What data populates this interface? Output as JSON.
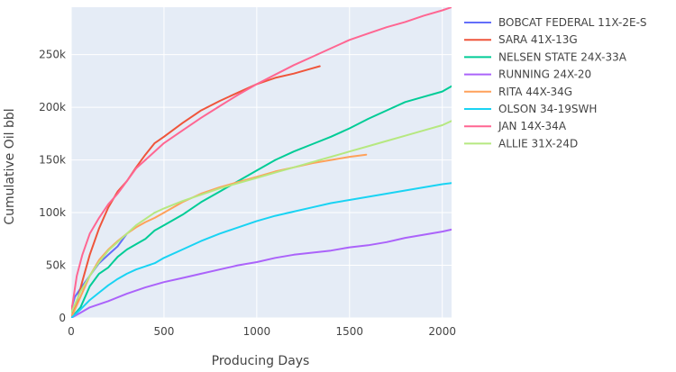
{
  "chart_data": {
    "type": "line",
    "title": "",
    "xlabel": "Producing Days",
    "ylabel": "Cumulative Oil bbl",
    "xlim": [
      0,
      2050
    ],
    "ylim": [
      0,
      295000
    ],
    "x_ticks": [
      0,
      500,
      1000,
      1500,
      2000
    ],
    "x_tick_labels": [
      "0",
      "500",
      "1000",
      "1500",
      "2000"
    ],
    "y_ticks": [
      0,
      50000,
      100000,
      150000,
      200000,
      250000
    ],
    "y_tick_labels": [
      "0",
      "50k",
      "100k",
      "150k",
      "200k",
      "250k"
    ],
    "grid": true,
    "plot_background": "#e5ecf6",
    "legend_position": "right",
    "series": [
      {
        "name": "BOBCAT FEDERAL 11X-2E-S",
        "color": "#636efa",
        "x": [
          0,
          20,
          50,
          100,
          150,
          200,
          250,
          300
        ],
        "y": [
          8000,
          20000,
          28000,
          40000,
          52000,
          60000,
          68000,
          80000
        ]
      },
      {
        "name": "SARA 41X-13G",
        "color": "#ef553b",
        "x": [
          0,
          30,
          60,
          100,
          150,
          200,
          250,
          300,
          350,
          400,
          450,
          500,
          600,
          700,
          800,
          900,
          1000,
          1100,
          1200,
          1300,
          1340
        ],
        "y": [
          0,
          15000,
          35000,
          60000,
          85000,
          105000,
          120000,
          130000,
          143000,
          155000,
          166000,
          172000,
          185000,
          197000,
          206000,
          214000,
          222000,
          228000,
          232000,
          237000,
          239000
        ]
      },
      {
        "name": "NELSEN STATE 24X-33A",
        "color": "#00cc96",
        "x": [
          0,
          50,
          100,
          150,
          200,
          250,
          300,
          350,
          400,
          450,
          500,
          550,
          600,
          700,
          800,
          900,
          1000,
          1100,
          1200,
          1300,
          1400,
          1500,
          1600,
          1700,
          1800,
          1900,
          2000,
          2050
        ],
        "y": [
          0,
          10000,
          30000,
          42000,
          48000,
          58000,
          65000,
          70000,
          75000,
          83000,
          88000,
          93000,
          98000,
          110000,
          120000,
          130000,
          140000,
          150000,
          158000,
          165000,
          172000,
          180000,
          189000,
          197000,
          205000,
          210000,
          215000,
          220000
        ]
      },
      {
        "name": "RUNNING 24X-20",
        "color": "#ab63fa",
        "x": [
          0,
          50,
          100,
          200,
          300,
          400,
          500,
          600,
          700,
          800,
          900,
          1000,
          1100,
          1200,
          1300,
          1400,
          1500,
          1600,
          1700,
          1800,
          1900,
          2000,
          2050
        ],
        "y": [
          0,
          5000,
          10000,
          16000,
          23000,
          29000,
          34000,
          38000,
          42000,
          46000,
          50000,
          53000,
          57000,
          60000,
          62000,
          64000,
          67000,
          69000,
          72000,
          76000,
          79000,
          82000,
          84000
        ]
      },
      {
        "name": "RITA 44X-34G",
        "color": "#ffa15a",
        "x": [
          0,
          50,
          100,
          150,
          200,
          250,
          300,
          350,
          400,
          450,
          500,
          600,
          700,
          800,
          900,
          1000,
          1100,
          1200,
          1300,
          1400,
          1500,
          1590
        ],
        "y": [
          0,
          20000,
          40000,
          55000,
          65000,
          73000,
          80000,
          86000,
          91000,
          95000,
          100000,
          110000,
          118000,
          124000,
          129000,
          134000,
          139000,
          143000,
          147000,
          150000,
          153000,
          155000
        ]
      },
      {
        "name": "OLSON 34-19SWH",
        "color": "#19d3f3",
        "x": [
          0,
          50,
          100,
          150,
          200,
          250,
          300,
          350,
          400,
          450,
          500,
          600,
          700,
          800,
          900,
          1000,
          1100,
          1200,
          1300,
          1400,
          1500,
          1600,
          1700,
          1800,
          1900,
          2000,
          2050
        ],
        "y": [
          0,
          8000,
          17000,
          24000,
          31000,
          37000,
          42000,
          46000,
          49000,
          52000,
          57000,
          65000,
          73000,
          80000,
          86000,
          92000,
          97000,
          101000,
          105000,
          109000,
          112000,
          115000,
          118000,
          121000,
          124000,
          127000,
          128000
        ]
      },
      {
        "name": "JAN 14X-34A",
        "color": "#ff6692",
        "x": [
          0,
          30,
          60,
          100,
          150,
          200,
          250,
          300,
          350,
          400,
          450,
          500,
          600,
          700,
          800,
          900,
          1000,
          1100,
          1200,
          1300,
          1400,
          1500,
          1600,
          1700,
          1800,
          1900,
          2000,
          2050
        ],
        "y": [
          5000,
          40000,
          60000,
          80000,
          95000,
          108000,
          118000,
          130000,
          142000,
          150000,
          158000,
          166000,
          178000,
          190000,
          201000,
          212000,
          222000,
          231000,
          240000,
          248000,
          256000,
          264000,
          270000,
          276000,
          281000,
          287000,
          292000,
          295000
        ]
      },
      {
        "name": "ALLIE 31X-24D",
        "color": "#b6e880",
        "x": [
          0,
          50,
          100,
          150,
          200,
          250,
          300,
          350,
          400,
          450,
          500,
          600,
          700,
          800,
          900,
          1000,
          1100,
          1200,
          1300,
          1400,
          1500,
          1600,
          1700,
          1800,
          1900,
          2000,
          2050
        ],
        "y": [
          5000,
          25000,
          40000,
          53000,
          64000,
          72000,
          80000,
          88000,
          94000,
          100000,
          104000,
          111000,
          117000,
          123000,
          128000,
          133000,
          138000,
          143000,
          148000,
          153000,
          158000,
          163000,
          168000,
          173000,
          178000,
          183000,
          187000
        ]
      }
    ]
  }
}
